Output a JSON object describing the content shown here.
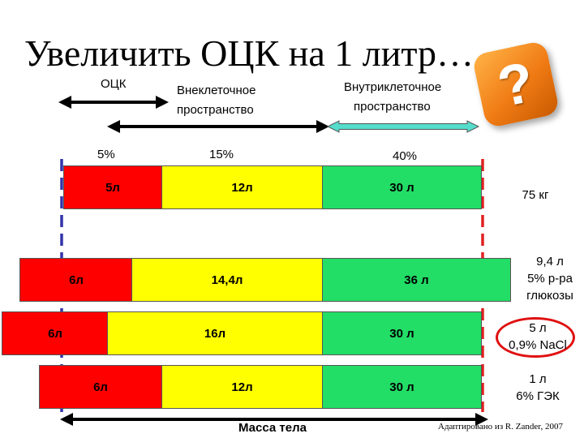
{
  "title": "Увеличить ОЦК на 1 литр…",
  "headers": {
    "ock": "ОЦК",
    "extra_line1": "Внеклеточное",
    "extra_line2": "пространство",
    "intra_line1": "Внутриклеточное",
    "intra_line2": "пространство"
  },
  "percents": {
    "ock": "5%",
    "extra": "15%",
    "intra": "40%"
  },
  "icon": "question-mark-icon",
  "colors": {
    "ock": "#ff0000",
    "interstitial": "#ffff00",
    "intracellular": "#22dd66",
    "intracellular_arrow": "#55ddcc"
  },
  "rows": [
    {
      "red": "5л",
      "yellow": "12л",
      "green": "30 л",
      "side_line1": "75 кг",
      "side_line2": "",
      "side_line3": ""
    },
    {
      "red": "6л",
      "yellow": "14,4л",
      "green": "36 л",
      "side_line1": "9,4 л",
      "side_line2": "5% р-ра",
      "side_line3": "глюкозы"
    },
    {
      "red": "6л",
      "yellow": "16л",
      "green": "30 л",
      "side_line1": "5 л",
      "side_line2": "0,9% NaCl",
      "side_line3": ""
    },
    {
      "red": "6л",
      "yellow": "12л",
      "green": "30 л",
      "side_line1": "1 л",
      "side_line2": "6% ГЭК",
      "side_line3": ""
    }
  ],
  "body_mass_label": "Масса тела",
  "source": "Адаптировано из R. Zander, 2007"
}
